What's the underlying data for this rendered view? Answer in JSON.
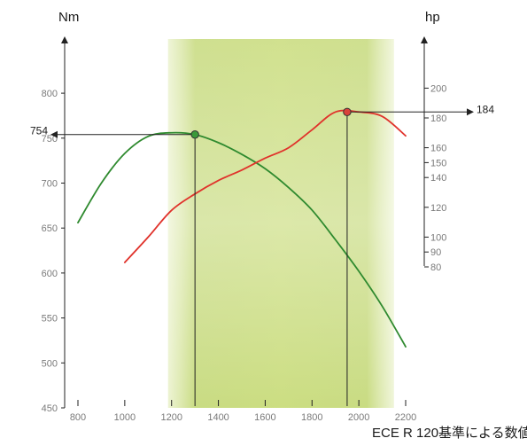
{
  "chart_data": {
    "type": "line",
    "left_axis": {
      "unit": "Nm",
      "range": [
        450,
        850
      ],
      "ticks": [
        450,
        500,
        550,
        600,
        650,
        700,
        750,
        800
      ]
    },
    "right_axis": {
      "unit": "hp",
      "range": [
        80,
        200
      ],
      "ticks": [
        80,
        90,
        100,
        120,
        140,
        150,
        160,
        180,
        200
      ]
    },
    "x_axis": {
      "range": [
        800,
        2200
      ],
      "ticks": [
        "800",
        "1000",
        "1200",
        "1400",
        "1600",
        "1800",
        "2000",
        "2200"
      ]
    },
    "highlight_band": {
      "x_range": [
        1200,
        2150
      ]
    },
    "series": [
      {
        "axis": "left",
        "color": "#2f8a2f",
        "x": [
          800,
          900,
          1000,
          1100,
          1200,
          1300,
          1400,
          1500,
          1600,
          1700,
          1800,
          1900,
          2000,
          2100,
          2200
        ],
        "y": [
          656,
          700,
          733,
          752,
          756,
          754,
          745,
          732,
          716,
          695,
          670,
          637,
          602,
          563,
          518
        ]
      },
      {
        "axis": "right",
        "color": "#e0322b",
        "x": [
          1000,
          1100,
          1200,
          1300,
          1400,
          1500,
          1600,
          1700,
          1800,
          1900,
          2000,
          2100,
          2200
        ],
        "y": [
          83,
          100,
          118,
          129,
          138,
          145,
          153,
          160,
          172,
          184,
          184,
          181,
          168
        ]
      }
    ],
    "callouts": [
      {
        "label": "754",
        "axis": "left",
        "x": 1300,
        "y": 754,
        "color": "#3a9a3a"
      },
      {
        "label": "184",
        "axis": "right",
        "x": 1950,
        "y": 184,
        "color": "#d9423a"
      }
    ]
  },
  "footnote": "ECE R 120基準による数値"
}
